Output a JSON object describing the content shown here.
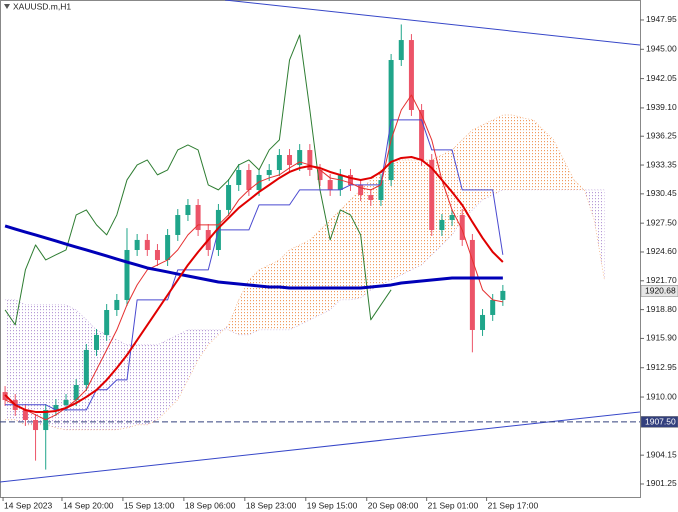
{
  "chart_data": {
    "type": "candlestick",
    "title": "XAUUSD.m,H1",
    "xlim": [
      -0.5,
      62.5
    ],
    "xticks": [
      {
        "value": -0.2,
        "label": "14 Sep 2023"
      },
      {
        "value": 5.6,
        "label": "14 Sep 20:00"
      },
      {
        "value": 11.6,
        "label": "15 Sep 13:00"
      },
      {
        "value": 17.6,
        "label": "18 Sep 06:00"
      },
      {
        "value": 23.6,
        "label": "18 Sep 23:00"
      },
      {
        "value": 29.6,
        "label": "19 Sep 15:00"
      },
      {
        "value": 35.6,
        "label": "20 Sep 08:00"
      },
      {
        "value": 41.5,
        "label": "21 Sep 01:00"
      },
      {
        "value": 47.4,
        "label": "21 Sep 17:00"
      }
    ],
    "ylim": [
      1899.94,
      1949.96
    ],
    "yticks": [
      1947.95,
      {
        "value": 1945,
        "label": "1945.00"
      },
      1942.05,
      {
        "value": 1939.1,
        "label": "1939.10"
      },
      1936.25,
      1933.35,
      1930.45,
      {
        "value": 1927.5,
        "label": "1927.50"
      },
      {
        "value": 1924.6,
        "label": "1924.60"
      },
      {
        "value": 1921.7,
        "label": "1921.70"
      },
      {
        "value": 1918.8,
        "label": "1918.80"
      },
      {
        "value": 1915.9,
        "label": "1915.90"
      },
      1912.95,
      {
        "value": 1910,
        "label": "1910.00"
      },
      1904.15,
      1901.25
    ],
    "up_color": "#1fa58a",
    "down_color": "#ec5468",
    "open": [
      1910.5,
      1909.7,
      1908.7,
      1907.69,
      1906.68,
      1908.7,
      1909.2,
      1909.7,
      1911.21,
      1914.74,
      1916.25,
      1918.76,
      1919.77,
      1924.8,
      1925.81,
      1924.8,
      1923.79,
      1926.31,
      1928.32,
      1929.33,
      1926.81,
      1924.8,
      1928.83,
      1931.34,
      1932.85,
      1930.84,
      1932.35,
      1932.85,
      1934.36,
      1933.35,
      1934.86,
      1932.85,
      1931.84,
      1930.84,
      1932.35,
      1931.34,
      1930.33,
      1929.83,
      1931.84,
      1943.92,
      1945.93,
      1938.89,
      1933.86,
      1926.81,
      1927.82,
      1928.32,
      1925.81,
      1916.75,
      1918.26,
      1919.77
    ],
    "high": [
      1911.1,
      1910.3,
      1909.3,
      1908.29,
      1909.3,
      1909.8,
      1910.3,
      1911.81,
      1915.34,
      1916.85,
      1919.36,
      1920.37,
      1927.0,
      1926.41,
      1926.41,
      1925.4,
      1926.91,
      1928.92,
      1929.93,
      1929.93,
      1927.41,
      1929.43,
      1931.94,
      1933.45,
      1933.45,
      1932.95,
      1933.45,
      1934.96,
      1934.96,
      1935.46,
      1935.46,
      1933.45,
      1932.44,
      1932.95,
      1932.95,
      1931.94,
      1930.93,
      1932.44,
      1944.52,
      1947.5,
      1946.53,
      1939.49,
      1934.46,
      1928.42,
      1928.92,
      1928.92,
      1926.41,
      1918.86,
      1920.37,
      1921.28
    ],
    "low": [
      1909.1,
      1908.1,
      1907.09,
      1903.6,
      1902.7,
      1908.1,
      1908.6,
      1909.1,
      1910.61,
      1914.14,
      1915.65,
      1918.16,
      1919.17,
      1924.2,
      1924.2,
      1923.19,
      1923.19,
      1925.71,
      1927.72,
      1926.21,
      1924.2,
      1924.2,
      1928.23,
      1930.74,
      1930.24,
      1930.24,
      1931.75,
      1932.25,
      1932.75,
      1932.75,
      1932.25,
      1931.24,
      1930.24,
      1930.24,
      1930.74,
      1929.73,
      1929.23,
      1929.23,
      1931.24,
      1943.32,
      1938.29,
      1933.26,
      1926.21,
      1926.21,
      1927.22,
      1925.21,
      1914.5,
      1916.15,
      1917.66,
      1919.17
    ],
    "close": [
      1909.7,
      1908.7,
      1907.69,
      1906.68,
      1908.7,
      1909.2,
      1909.7,
      1911.21,
      1914.74,
      1916.25,
      1918.76,
      1919.77,
      1924.8,
      1925.81,
      1924.8,
      1923.79,
      1926.31,
      1928.32,
      1929.33,
      1926.81,
      1924.8,
      1928.83,
      1931.34,
      1932.85,
      1930.84,
      1932.35,
      1932.85,
      1934.36,
      1933.35,
      1934.86,
      1932.85,
      1931.84,
      1930.84,
      1932.35,
      1931.34,
      1930.33,
      1929.83,
      1931.84,
      1943.92,
      1945.93,
      1938.89,
      1933.86,
      1926.81,
      1927.82,
      1928.32,
      1925.81,
      1916.75,
      1918.26,
      1919.77,
      1920.68
    ],
    "lines": [
      {
        "color": "#2e7d32",
        "width": 1,
        "values": [
          1918.77,
          1917.27,
          1922.8,
          1925.31,
          1923.8,
          1924.31,
          1924.81,
          1928.33,
          1928.83,
          1927.33,
          1926.32,
          1928.33,
          1931.85,
          1933.36,
          1933.86,
          1932.36,
          1932.86,
          1934.87,
          1935.37,
          1934.87,
          1931.35,
          1930.85,
          1931.85,
          1933.36,
          1933.86,
          1932.86,
          1934.87,
          1935.88,
          1943.92,
          1946.44,
          1938.89,
          1930.85,
          1925.82,
          1928.83,
          1928.33,
          1926.32,
          1917.77,
          1919.28,
          1920.79,
          null,
          null,
          null,
          null,
          null,
          null,
          null,
          null,
          null,
          null,
          null
        ]
      },
      {
        "color": "#4a4ad0",
        "width": 1,
        "values": [
          1909.22,
          1909.22,
          1909.22,
          1909.22,
          1909.22,
          1908.71,
          1908.71,
          1908.71,
          1908.71,
          1910.73,
          1910.73,
          1911.73,
          1911.73,
          1919.78,
          1919.78,
          1919.78,
          1919.78,
          1922.8,
          1922.8,
          1922.8,
          1922.8,
          1926.82,
          1926.82,
          1926.82,
          1926.82,
          1929.34,
          1929.34,
          1929.34,
          1929.34,
          1930.85,
          1930.85,
          1930.85,
          1930.85,
          1930.85,
          1931.35,
          1931.35,
          1931.35,
          1931.35,
          1937.89,
          1937.89,
          1937.89,
          1937.89,
          1934.87,
          1934.87,
          1934.87,
          1930.85,
          1930.85,
          1930.85,
          1930.85,
          1924.31
        ]
      },
      {
        "color": "#e53030",
        "width": 1,
        "values": [
          1909.72,
          1909.22,
          1908.71,
          1908.21,
          1907.71,
          1908.21,
          1908.91,
          1909.72,
          1910.73,
          1912.74,
          1914.75,
          1916.76,
          1919.28,
          1921.29,
          1922.8,
          1923.3,
          1923.8,
          1924.81,
          1926.32,
          1927.33,
          1927.33,
          1927.33,
          1928.33,
          1929.84,
          1930.85,
          1931.65,
          1932.05,
          1932.36,
          1933.06,
          1933.66,
          1933.36,
          1932.86,
          1932.05,
          1931.85,
          1931.55,
          1931.05,
          1930.85,
          1931.35,
          1935.88,
          1938.89,
          1940.4,
          1938.39,
          1935.88,
          1931.85,
          1928.83,
          1926.82,
          1923.8,
          1920.79,
          1919.78,
          1919.58
        ]
      },
      {
        "color": "#0000b8",
        "width": 3,
        "values": [
          1927.22,
          1926.91,
          1926.61,
          1926.31,
          1926.01,
          1925.71,
          1925.4,
          1925.1,
          1924.8,
          1924.5,
          1924.2,
          1923.89,
          1923.59,
          1923.29,
          1922.99,
          1922.79,
          1922.59,
          1922.38,
          1922.18,
          1921.98,
          1921.78,
          1921.58,
          1921.48,
          1921.38,
          1921.28,
          1921.18,
          1921.08,
          1921.08,
          1920.97,
          1920.97,
          1920.97,
          1920.97,
          1920.97,
          1920.97,
          1920.97,
          1920.97,
          1921.08,
          1921.18,
          1921.28,
          1921.48,
          1921.58,
          1921.68,
          1921.78,
          1921.88,
          1921.98,
          1921.98,
          1921.98,
          1921.98,
          1921.98,
          1921.98
        ]
      },
      {
        "color": "#e00000",
        "width": 2,
        "values": [
          1910.21,
          1909.2,
          1908.7,
          1908.5,
          1908.5,
          1908.6,
          1908.9,
          1909.4,
          1910.01,
          1910.71,
          1911.72,
          1912.92,
          1914.23,
          1915.74,
          1917.25,
          1918.76,
          1920.27,
          1921.78,
          1923.29,
          1924.6,
          1925.81,
          1927.01,
          1928.02,
          1929.03,
          1929.83,
          1930.64,
          1931.34,
          1932.05,
          1932.65,
          1933.05,
          1933.25,
          1933.05,
          1932.65,
          1932.35,
          1932.05,
          1931.84,
          1932.05,
          1932.65,
          1933.66,
          1934.06,
          1934.16,
          1933.86,
          1933.05,
          1931.84,
          1930.64,
          1929.33,
          1927.62,
          1926.01,
          1924.6,
          1923.59
        ]
      }
    ],
    "cloud": {
      "up_color": "#b79ad6",
      "down_color": "#f09a5e",
      "span_a": [
        1919.78,
        1919.78,
        1919.28,
        1919.28,
        1919.28,
        1919.28,
        1919.28,
        1918.77,
        1917.77,
        1916.76,
        1916.26,
        1915.76,
        1915.25,
        1915.25,
        1915.25,
        1915.25,
        1915.76,
        1916.26,
        1916.76,
        1916.76,
        1916.76,
        1916.76,
        1916.76,
        1916.26,
        1916.26,
        1916.76,
        1916.76,
        1916.76,
        1916.76,
        1917.26,
        1917.77,
        1918.27,
        1918.77,
        1919.78,
        1919.78,
        1919.98,
        1920.79,
        1921.29,
        1921.79,
        1922.29,
        1922.8,
        1923.3,
        1924.31,
        1925.31,
        1926.32,
        1927.83,
        1928.83,
        1929.84,
        1930.34,
        1930.85,
        1930.85,
        1930.85,
        1930.85,
        1930.85,
        1930.85,
        1930.85,
        1930.85,
        1930.85,
        1930.85,
        1930.85
      ],
      "span_b": [
        1907.71,
        1907.71,
        1907.21,
        1907.21,
        1907.21,
        1906.9,
        1906.7,
        1906.7,
        1906.7,
        1906.7,
        1906.7,
        1906.7,
        1906.9,
        1907.21,
        1907.21,
        1907.71,
        1908.71,
        1909.72,
        1911.73,
        1913.74,
        1915.25,
        1916.26,
        1917.26,
        1919.78,
        1921.79,
        1922.8,
        1923.3,
        1923.8,
        1924.81,
        1925.31,
        1925.82,
        1926.82,
        1927.83,
        1928.83,
        1929.84,
        1930.85,
        1931.85,
        1932.86,
        1933.36,
        1933.86,
        1933.86,
        1933.86,
        1933.86,
        1934.37,
        1934.87,
        1935.88,
        1936.88,
        1937.39,
        1937.89,
        1938.39,
        1938.39,
        1938.09,
        1937.89,
        1936.88,
        1935.88,
        1933.86,
        1931.85,
        1930.85,
        1927.83,
        1921.79
      ]
    },
    "trendlines": [
      {
        "color": "#3646c8",
        "x": [
          21.65,
          62.5
        ],
        "y": [
          1949.96,
          1945.43
        ]
      },
      {
        "color": "#3646c8",
        "x": [
          -0.5,
          62.5
        ],
        "y": [
          1901.45,
          1908.5
        ]
      }
    ],
    "hline": {
      "value": 1907.5,
      "label": "1907.50",
      "color": "#33407e"
    },
    "last_price": 1920.68
  }
}
